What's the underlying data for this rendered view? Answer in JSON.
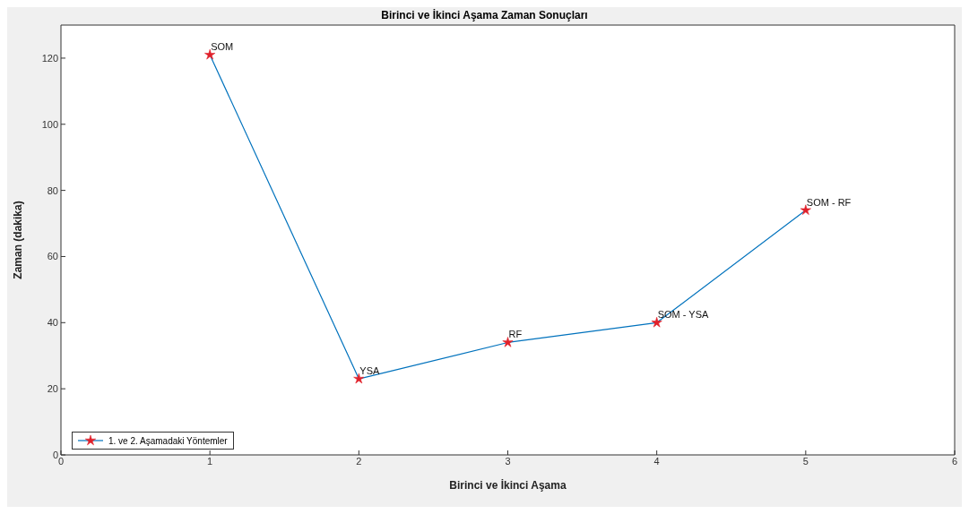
{
  "chart_data": {
    "type": "line",
    "title": "Birinci ve İkinci Aşama Zaman Sonuçları",
    "xlabel": "Birinci ve İkinci Aşama",
    "ylabel": "Zaman (dakika)",
    "x": [
      1,
      2,
      3,
      4,
      5
    ],
    "series": [
      {
        "name": "1. ve 2. Aşamadaki Yöntemler",
        "color": "#0072bd",
        "colors": [
          "#e0202a",
          "#e0202a",
          "#e0202a",
          "#e0202a",
          "#e0202a"
        ],
        "values": [
          121,
          23,
          34,
          40,
          74
        ]
      }
    ],
    "xlim": [
      0,
      6
    ],
    "xticks": [
      0,
      1,
      2,
      3,
      4,
      5,
      6
    ],
    "ylim": [
      0,
      130
    ],
    "yticks": [
      0,
      20,
      40,
      60,
      80,
      100,
      120
    ],
    "annotations": [
      {
        "text": "SOM",
        "x": 1,
        "y": 121
      },
      {
        "text": "YSA",
        "x": 2,
        "y": 23
      },
      {
        "text": "RF",
        "x": 3,
        "y": 34
      },
      {
        "text": "SOM - YSA",
        "x": 4,
        "y": 40
      },
      {
        "text": "SOM - RF",
        "x": 5,
        "y": 74
      }
    ],
    "marker": "star",
    "line_style": "solid",
    "grid": false,
    "legend": "bottom left"
  }
}
